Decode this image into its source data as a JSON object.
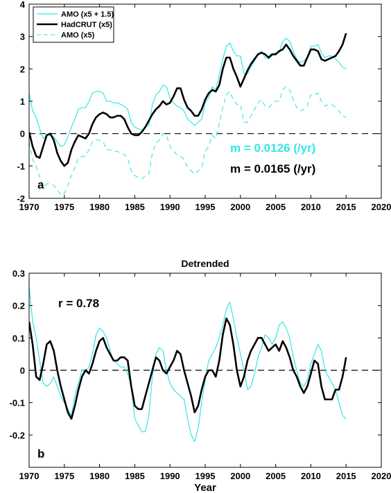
{
  "colors": {
    "amo": "#33e6e6",
    "hadcrut": "#000000",
    "zero": "#000000"
  },
  "chart_data": [
    {
      "type": "line",
      "panel_label": "a",
      "title": "",
      "xlabel": "",
      "ylabel": "",
      "xlim": [
        1970,
        2020
      ],
      "ylim": [
        -2,
        4
      ],
      "xticks": [
        1970,
        1975,
        1980,
        1985,
        1990,
        1995,
        2000,
        2005,
        2010,
        2015,
        2020
      ],
      "yticks": [
        -2,
        -1,
        0,
        1,
        2,
        3,
        4
      ],
      "legend_position": "top-left",
      "annotations": [
        {
          "text": "m = 0.0126 (/yr)",
          "color": "#33e6e6"
        },
        {
          "text": "m = 0.0165 (/yr)",
          "color": "#000000"
        }
      ],
      "series": [
        {
          "name": "AMO (x5 + 1.5)",
          "style": "thin-solid",
          "color": "#33e6e6",
          "x": [
            1970.0,
            1970.5,
            1971.0,
            1971.5,
            1972.0,
            1972.5,
            1973.0,
            1973.5,
            1974.0,
            1974.5,
            1975.0,
            1975.5,
            1976.0,
            1976.5,
            1977.0,
            1977.5,
            1978.0,
            1978.5,
            1979.0,
            1979.5,
            1980.0,
            1980.5,
            1981.0,
            1981.5,
            1982.0,
            1982.5,
            1983.0,
            1983.5,
            1984.0,
            1984.5,
            1985.0,
            1985.5,
            1986.0,
            1986.5,
            1987.0,
            1987.5,
            1988.0,
            1988.5,
            1989.0,
            1989.5,
            1990.0,
            1990.5,
            1991.0,
            1991.5,
            1992.0,
            1992.5,
            1993.0,
            1993.5,
            1994.0,
            1994.5,
            1995.0,
            1995.5,
            1996.0,
            1996.5,
            1997.0,
            1997.5,
            1998.0,
            1998.5,
            1999.0,
            1999.5,
            2000.0,
            2000.5,
            2001.0,
            2001.5,
            2002.0,
            2002.5,
            2003.0,
            2003.5,
            2004.0,
            2004.5,
            2005.0,
            2005.5,
            2006.0,
            2006.5,
            2007.0,
            2007.5,
            2008.0,
            2008.5,
            2009.0,
            2009.5,
            2010.0,
            2010.5,
            2011.0,
            2011.5,
            2012.0,
            2012.5,
            2013.0,
            2013.5,
            2014.0,
            2014.5,
            2015.0
          ],
          "y": [
            1.25,
            0.7,
            0.5,
            0.15,
            -0.15,
            -0.05,
            -0.05,
            -0.1,
            -0.25,
            -0.4,
            -0.35,
            -0.1,
            0.2,
            0.45,
            0.75,
            0.8,
            0.8,
            1.0,
            1.25,
            1.3,
            1.3,
            1.25,
            1.0,
            1.0,
            0.95,
            0.95,
            0.9,
            0.85,
            0.75,
            0.35,
            0.2,
            0.15,
            0.1,
            0.2,
            0.25,
            0.9,
            1.2,
            1.3,
            1.5,
            1.45,
            1.1,
            0.95,
            0.85,
            0.8,
            0.7,
            0.45,
            0.35,
            0.25,
            0.35,
            0.45,
            0.95,
            1.1,
            1.45,
            1.35,
            1.8,
            2.3,
            2.7,
            2.8,
            2.55,
            2.4,
            2.4,
            1.85,
            1.85,
            2.05,
            2.25,
            2.45,
            2.55,
            2.35,
            2.3,
            2.4,
            2.5,
            2.5,
            2.85,
            2.95,
            2.85,
            2.55,
            2.3,
            2.2,
            2.25,
            2.35,
            2.7,
            2.7,
            2.75,
            2.5,
            2.35,
            2.4,
            2.4,
            2.3,
            2.2,
            2.05,
            2.0
          ]
        },
        {
          "name": "HadCRUT (x5)",
          "style": "thick-solid",
          "color": "#000000",
          "x": [
            1970.0,
            1970.5,
            1971.0,
            1971.5,
            1972.0,
            1972.5,
            1973.0,
            1973.5,
            1974.0,
            1974.5,
            1975.0,
            1975.5,
            1976.0,
            1976.5,
            1977.0,
            1977.5,
            1978.0,
            1978.5,
            1979.0,
            1979.5,
            1980.0,
            1980.5,
            1981.0,
            1981.5,
            1982.0,
            1982.5,
            1983.0,
            1983.5,
            1984.0,
            1984.5,
            1985.0,
            1985.5,
            1986.0,
            1986.5,
            1987.0,
            1987.5,
            1988.0,
            1988.5,
            1989.0,
            1989.5,
            1990.0,
            1990.5,
            1991.0,
            1991.5,
            1992.0,
            1992.5,
            1993.0,
            1993.5,
            1994.0,
            1994.5,
            1995.0,
            1995.5,
            1996.0,
            1996.5,
            1997.0,
            1997.5,
            1998.0,
            1998.5,
            1999.0,
            1999.5,
            2000.0,
            2000.5,
            2001.0,
            2001.5,
            2002.0,
            2002.5,
            2003.0,
            2003.5,
            2004.0,
            2004.5,
            2005.0,
            2005.5,
            2006.0,
            2006.5,
            2007.0,
            2007.5,
            2008.0,
            2008.5,
            2009.0,
            2009.5,
            2010.0,
            2010.5,
            2011.0,
            2011.5,
            2012.0,
            2012.5,
            2013.0,
            2013.5,
            2014.0,
            2014.5,
            2015.0
          ],
          "y": [
            0.05,
            -0.4,
            -0.7,
            -0.75,
            -0.4,
            -0.05,
            0.0,
            -0.2,
            -0.6,
            -0.85,
            -1.0,
            -0.9,
            -0.5,
            -0.25,
            -0.05,
            -0.1,
            -0.15,
            0.0,
            0.3,
            0.5,
            0.6,
            0.65,
            0.6,
            0.5,
            0.5,
            0.55,
            0.55,
            0.45,
            0.2,
            0.0,
            -0.05,
            -0.05,
            0.05,
            0.2,
            0.4,
            0.6,
            0.75,
            0.85,
            1.0,
            0.9,
            0.95,
            1.15,
            1.4,
            1.4,
            1.05,
            0.8,
            0.7,
            0.55,
            0.55,
            0.75,
            1.05,
            1.25,
            1.35,
            1.3,
            1.5,
            2.0,
            2.35,
            2.35,
            2.0,
            1.75,
            1.45,
            1.7,
            1.95,
            2.15,
            2.3,
            2.45,
            2.5,
            2.45,
            2.35,
            2.45,
            2.45,
            2.55,
            2.6,
            2.75,
            2.6,
            2.4,
            2.25,
            2.1,
            2.1,
            2.35,
            2.6,
            2.6,
            2.55,
            2.3,
            2.25,
            2.3,
            2.35,
            2.4,
            2.55,
            2.75,
            3.1
          ]
        },
        {
          "name": "AMO (x5)",
          "style": "thin-dashed",
          "color": "#33e6e6",
          "x": [
            1970.0,
            1970.5,
            1971.0,
            1971.5,
            1972.0,
            1972.5,
            1973.0,
            1973.5,
            1974.0,
            1974.5,
            1975.0,
            1975.5,
            1976.0,
            1976.5,
            1977.0,
            1977.5,
            1978.0,
            1978.5,
            1979.0,
            1979.5,
            1980.0,
            1980.5,
            1981.0,
            1981.5,
            1982.0,
            1982.5,
            1983.0,
            1983.5,
            1984.0,
            1984.5,
            1985.0,
            1985.5,
            1986.0,
            1986.5,
            1987.0,
            1987.5,
            1988.0,
            1988.5,
            1989.0,
            1989.5,
            1990.0,
            1990.5,
            1991.0,
            1991.5,
            1992.0,
            1992.5,
            1993.0,
            1993.5,
            1994.0,
            1994.5,
            1995.0,
            1995.5,
            1996.0,
            1996.5,
            1997.0,
            1997.5,
            1998.0,
            1998.5,
            1999.0,
            1999.5,
            2000.0,
            2000.5,
            2001.0,
            2001.5,
            2002.0,
            2002.5,
            2003.0,
            2003.5,
            2004.0,
            2004.5,
            2005.0,
            2005.5,
            2006.0,
            2006.5,
            2007.0,
            2007.5,
            2008.0,
            2008.5,
            2009.0,
            2009.5,
            2010.0,
            2010.5,
            2011.0,
            2011.5,
            2012.0,
            2012.5,
            2013.0,
            2013.5,
            2014.0,
            2014.5,
            2015.0
          ],
          "y": [
            -0.25,
            -0.8,
            -1.0,
            -1.35,
            -1.65,
            -1.55,
            -1.55,
            -1.6,
            -1.75,
            -1.9,
            -1.85,
            -1.6,
            -1.3,
            -1.05,
            -0.75,
            -0.7,
            -0.7,
            -0.5,
            -0.25,
            -0.2,
            -0.2,
            -0.25,
            -0.5,
            -0.5,
            -0.55,
            -0.55,
            -0.6,
            -0.65,
            -0.75,
            -1.15,
            -1.3,
            -1.35,
            -1.4,
            -1.3,
            -1.25,
            -0.6,
            -0.3,
            -0.2,
            0.0,
            -0.05,
            -0.4,
            -0.55,
            -0.65,
            -0.7,
            -0.8,
            -1.05,
            -1.15,
            -1.25,
            -1.15,
            -1.05,
            -0.55,
            -0.4,
            -0.05,
            -0.15,
            0.3,
            0.8,
            1.2,
            1.3,
            1.05,
            0.9,
            0.9,
            0.35,
            0.35,
            0.55,
            0.75,
            0.95,
            1.05,
            0.85,
            0.8,
            0.9,
            1.0,
            1.0,
            1.35,
            1.45,
            1.35,
            1.05,
            0.8,
            0.7,
            0.75,
            0.85,
            1.2,
            1.2,
            1.25,
            1.0,
            0.85,
            0.9,
            0.9,
            0.8,
            0.7,
            0.55,
            0.5
          ]
        }
      ]
    },
    {
      "type": "line",
      "panel_label": "b",
      "title": "Detrended",
      "xlabel": "Year",
      "ylabel": "",
      "xlim": [
        1970,
        2020
      ],
      "ylim": [
        -0.3,
        0.3
      ],
      "xticks": [
        1970,
        1975,
        1980,
        1985,
        1990,
        1995,
        2000,
        2005,
        2010,
        2015,
        2020
      ],
      "yticks": [
        -0.2,
        -0.1,
        0,
        0.1,
        0.2,
        0.3
      ],
      "annotations": [
        {
          "text": "r = 0.78",
          "color": "#000000"
        }
      ],
      "series": [
        {
          "style": "thin-solid",
          "color": "#33e6e6",
          "x": [
            1970.0,
            1970.5,
            1971.0,
            1971.5,
            1972.0,
            1972.5,
            1973.0,
            1973.5,
            1974.0,
            1974.5,
            1975.0,
            1975.5,
            1976.0,
            1976.5,
            1977.0,
            1977.5,
            1978.0,
            1978.5,
            1979.0,
            1979.5,
            1980.0,
            1980.5,
            1981.0,
            1981.5,
            1982.0,
            1982.5,
            1983.0,
            1983.5,
            1984.0,
            1984.5,
            1985.0,
            1985.5,
            1986.0,
            1986.5,
            1987.0,
            1987.5,
            1988.0,
            1988.5,
            1989.0,
            1989.5,
            1990.0,
            1990.5,
            1991.0,
            1991.5,
            1992.0,
            1992.5,
            1993.0,
            1993.5,
            1994.0,
            1994.5,
            1995.0,
            1995.5,
            1996.0,
            1996.5,
            1997.0,
            1997.5,
            1998.0,
            1998.5,
            1999.0,
            1999.5,
            2000.0,
            2000.5,
            2001.0,
            2001.5,
            2002.0,
            2002.5,
            2003.0,
            2003.5,
            2004.0,
            2004.5,
            2005.0,
            2005.5,
            2006.0,
            2006.5,
            2007.0,
            2007.5,
            2008.0,
            2008.5,
            2009.0,
            2009.5,
            2010.0,
            2010.5,
            2011.0,
            2011.5,
            2012.0,
            2012.5,
            2013.0,
            2013.5,
            2014.0,
            2014.5,
            2015.0
          ],
          "y": [
            0.26,
            0.15,
            0.1,
            0.03,
            -0.04,
            -0.05,
            -0.04,
            -0.02,
            -0.05,
            -0.08,
            -0.1,
            -0.12,
            -0.14,
            -0.08,
            -0.04,
            0.0,
            0.0,
            0.01,
            0.05,
            0.11,
            0.13,
            0.12,
            0.1,
            0.06,
            0.03,
            0.02,
            0.01,
            0.01,
            -0.01,
            -0.05,
            -0.15,
            -0.17,
            -0.19,
            -0.19,
            -0.14,
            -0.02,
            0.05,
            0.07,
            0.06,
            0.0,
            -0.04,
            -0.06,
            -0.07,
            -0.08,
            -0.09,
            -0.15,
            -0.2,
            -0.22,
            -0.18,
            -0.1,
            -0.03,
            0.03,
            0.05,
            0.07,
            0.1,
            0.14,
            0.19,
            0.21,
            0.16,
            0.1,
            0.05,
            0.0,
            -0.06,
            -0.05,
            -0.01,
            0.04,
            0.07,
            0.11,
            0.1,
            0.08,
            0.1,
            0.14,
            0.15,
            0.13,
            0.1,
            0.04,
            0.0,
            -0.04,
            -0.05,
            -0.03,
            0.02,
            0.05,
            0.08,
            0.06,
            0.0,
            -0.02,
            -0.04,
            -0.06,
            -0.1,
            -0.14,
            -0.15
          ]
        },
        {
          "style": "thick-solid",
          "color": "#000000",
          "x": [
            1970.0,
            1970.5,
            1971.0,
            1971.5,
            1972.0,
            1972.5,
            1973.0,
            1973.5,
            1974.0,
            1974.5,
            1975.0,
            1975.5,
            1976.0,
            1976.5,
            1977.0,
            1977.5,
            1978.0,
            1978.5,
            1979.0,
            1979.5,
            1980.0,
            1980.5,
            1981.0,
            1981.5,
            1982.0,
            1982.5,
            1983.0,
            1983.5,
            1984.0,
            1984.5,
            1985.0,
            1985.5,
            1986.0,
            1986.5,
            1987.0,
            1987.5,
            1988.0,
            1988.5,
            1989.0,
            1989.5,
            1990.0,
            1990.5,
            1991.0,
            1991.5,
            1992.0,
            1992.5,
            1993.0,
            1993.5,
            1994.0,
            1994.5,
            1995.0,
            1995.5,
            1996.0,
            1996.5,
            1997.0,
            1997.5,
            1998.0,
            1998.5,
            1999.0,
            1999.5,
            2000.0,
            2000.5,
            2001.0,
            2001.5,
            2002.0,
            2002.5,
            2003.0,
            2003.5,
            2004.0,
            2004.5,
            2005.0,
            2005.5,
            2006.0,
            2006.5,
            2007.0,
            2007.5,
            2008.0,
            2008.5,
            2009.0,
            2009.5,
            2010.0,
            2010.5,
            2011.0,
            2011.5,
            2012.0,
            2012.5,
            2013.0,
            2013.5,
            2014.0,
            2014.5,
            2015.0
          ],
          "y": [
            0.15,
            0.08,
            -0.02,
            -0.03,
            0.02,
            0.08,
            0.09,
            0.06,
            0.0,
            -0.05,
            -0.09,
            -0.13,
            -0.15,
            -0.11,
            -0.06,
            -0.02,
            0.0,
            -0.01,
            0.02,
            0.06,
            0.09,
            0.1,
            0.07,
            0.05,
            0.03,
            0.03,
            0.04,
            0.04,
            0.03,
            -0.05,
            -0.11,
            -0.12,
            -0.12,
            -0.08,
            -0.04,
            0.0,
            0.04,
            0.03,
            0.0,
            -0.01,
            0.01,
            0.03,
            0.06,
            0.05,
            0.0,
            -0.04,
            -0.08,
            -0.13,
            -0.11,
            -0.06,
            -0.02,
            0.0,
            0.0,
            -0.02,
            0.03,
            0.11,
            0.16,
            0.14,
            0.08,
            0.0,
            -0.05,
            -0.02,
            0.03,
            0.06,
            0.08,
            0.1,
            0.1,
            0.08,
            0.06,
            0.07,
            0.08,
            0.06,
            0.09,
            0.07,
            0.04,
            0.0,
            -0.02,
            -0.05,
            -0.07,
            -0.05,
            -0.01,
            0.03,
            0.02,
            -0.05,
            -0.09,
            -0.09,
            -0.09,
            -0.06,
            -0.06,
            -0.02,
            0.04
          ]
        }
      ]
    }
  ]
}
